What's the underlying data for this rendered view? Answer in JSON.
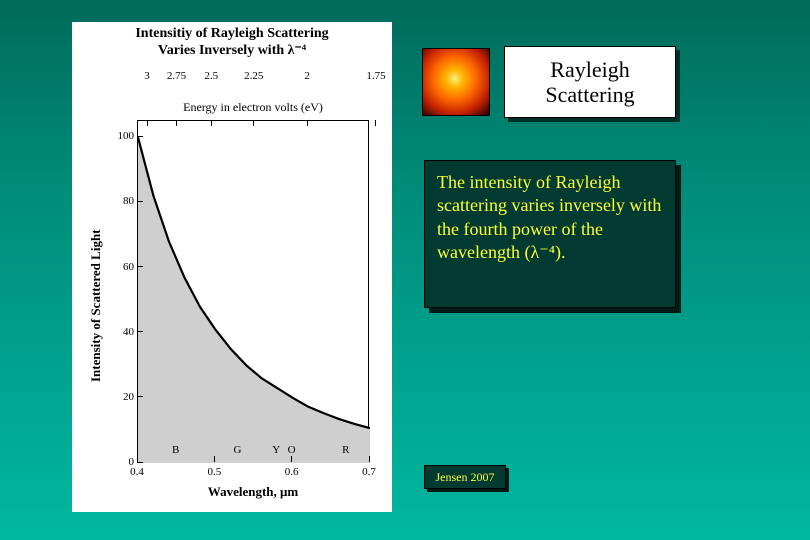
{
  "title_box": "Rayleigh Scattering",
  "description": "The intensity of Rayleigh scattering varies inversely with the fourth power of the wavelength (λ⁻⁴).",
  "credit": "Jensen 2007",
  "chart": {
    "type": "line-area",
    "title_line1": "Intensitiy of Rayleigh Scattering",
    "title_line2": "Varies Inversely with λ⁻⁴",
    "top_axis_label": "Energy in electron volts (eV)",
    "top_ticks": [
      {
        "label": "3",
        "x_um": 0.413
      },
      {
        "label": "2.75",
        "x_um": 0.451
      },
      {
        "label": "2.5",
        "x_um": 0.496
      },
      {
        "label": "2.25",
        "x_um": 0.551
      },
      {
        "label": "2",
        "x_um": 0.62
      },
      {
        "label": "1.75",
        "x_um": 0.709
      }
    ],
    "x_axis_label": "Wavelength, μm",
    "y_axis_label": "Intensity of Scattered Light",
    "xlim": [
      0.4,
      0.7
    ],
    "ylim": [
      0,
      105
    ],
    "x_ticks": [
      0.4,
      0.5,
      0.6,
      0.7
    ],
    "y_ticks": [
      0,
      20,
      40,
      60,
      80,
      100
    ],
    "band_labels": [
      {
        "label": "B",
        "x_um": 0.45
      },
      {
        "label": "G",
        "x_um": 0.53
      },
      {
        "label": "Y",
        "x_um": 0.58
      },
      {
        "label": "O",
        "x_um": 0.6
      },
      {
        "label": "R",
        "x_um": 0.67
      }
    ],
    "curve_points": [
      {
        "x": 0.4,
        "y": 100.0
      },
      {
        "x": 0.42,
        "y": 82.0
      },
      {
        "x": 0.44,
        "y": 68.0
      },
      {
        "x": 0.46,
        "y": 57.0
      },
      {
        "x": 0.48,
        "y": 48.0
      },
      {
        "x": 0.5,
        "y": 41.0
      },
      {
        "x": 0.52,
        "y": 35.0
      },
      {
        "x": 0.54,
        "y": 30.0
      },
      {
        "x": 0.56,
        "y": 26.0
      },
      {
        "x": 0.58,
        "y": 23.0
      },
      {
        "x": 0.6,
        "y": 20.0
      },
      {
        "x": 0.62,
        "y": 17.3
      },
      {
        "x": 0.64,
        "y": 15.3
      },
      {
        "x": 0.66,
        "y": 13.5
      },
      {
        "x": 0.68,
        "y": 12.0
      },
      {
        "x": 0.7,
        "y": 10.7
      }
    ],
    "fill_color": "#cfcfcf",
    "stroke_color": "#000000",
    "stroke_width": 2.2,
    "background_color": "#ffffff",
    "title_fontsize": 14,
    "label_fontsize": 13,
    "tick_fontsize": 11
  },
  "colors": {
    "page_bg_top": "#006b5a",
    "page_bg_bottom": "#00b8a0",
    "box_bg": "#003a30",
    "box_shadow": "#001a15",
    "yellow_text": "#ffff33"
  }
}
